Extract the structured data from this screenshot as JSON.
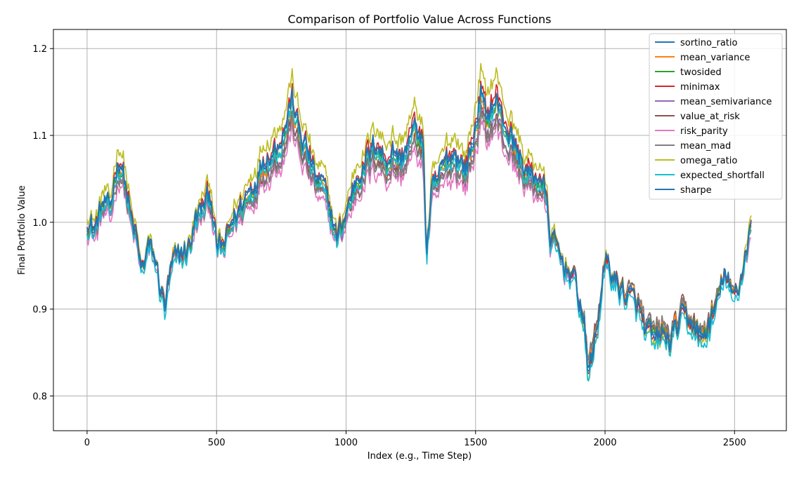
{
  "chart_data": {
    "type": "line",
    "title": "Comparison of Portfolio Value Across Functions",
    "xlabel": "Index (e.g., Time Step)",
    "ylabel": "Final Portfolio Value",
    "xlim": [
      -130,
      2700
    ],
    "ylim": [
      0.76,
      1.222
    ],
    "xticks": [
      0,
      500,
      1000,
      1500,
      2000,
      2500
    ],
    "xtick_labels": [
      "0",
      "500",
      "1000",
      "1500",
      "2000",
      "2500"
    ],
    "yticks": [
      0.8,
      0.9,
      1.0,
      1.1,
      1.2
    ],
    "ytick_labels": [
      "0.8",
      "0.9",
      "1.0",
      "1.1",
      "1.2"
    ],
    "grid": true,
    "legend_position": "top-right",
    "num_points": 2565,
    "base_path": {
      "x": [
        0,
        30,
        60,
        90,
        110,
        130,
        150,
        170,
        190,
        210,
        235,
        260,
        285,
        300,
        330,
        360,
        390,
        420,
        450,
        480,
        500,
        530,
        560,
        600,
        640,
        680,
        720,
        760,
        790,
        820,
        850,
        880,
        910,
        940,
        965,
        990,
        1010,
        1040,
        1080,
        1120,
        1150,
        1180,
        1210,
        1240,
        1270,
        1300,
        1310,
        1330,
        1360,
        1390,
        1420,
        1460,
        1490,
        1520,
        1540,
        1560,
        1580,
        1600,
        1630,
        1660,
        1690,
        1720,
        1750,
        1770,
        1790,
        1810,
        1840,
        1870,
        1900,
        1920,
        1935,
        1950,
        1970,
        1990,
        2010,
        2040,
        2070,
        2100,
        2130,
        2160,
        2190,
        2220,
        2250,
        2280,
        2310,
        2340,
        2370,
        2400,
        2430,
        2460,
        2490,
        2520,
        2540,
        2565
      ],
      "y": [
        1.0,
        0.99,
        1.02,
        1.01,
        1.06,
        1.07,
        1.04,
        1.0,
        0.98,
        0.94,
        0.97,
        0.96,
        0.92,
        0.9,
        0.95,
        0.96,
        0.97,
        1.0,
        1.02,
        1.03,
        0.97,
        0.97,
        1.0,
        1.02,
        1.04,
        1.07,
        1.08,
        1.1,
        1.14,
        1.1,
        1.08,
        1.05,
        1.04,
        1.01,
        0.98,
        1.0,
        1.02,
        1.05,
        1.07,
        1.09,
        1.07,
        1.08,
        1.07,
        1.09,
        1.11,
        1.08,
        0.96,
        1.03,
        1.05,
        1.07,
        1.08,
        1.06,
        1.09,
        1.15,
        1.12,
        1.13,
        1.14,
        1.12,
        1.1,
        1.08,
        1.06,
        1.05,
        1.05,
        1.03,
        0.98,
        0.97,
        0.95,
        0.94,
        0.91,
        0.88,
        0.82,
        0.85,
        0.87,
        0.94,
        0.95,
        0.93,
        0.92,
        0.91,
        0.9,
        0.87,
        0.86,
        0.87,
        0.86,
        0.88,
        0.89,
        0.88,
        0.86,
        0.88,
        0.9,
        0.94,
        0.91,
        0.93,
        0.96,
        1.0
      ]
    },
    "series": [
      {
        "name": "sortino_ratio",
        "color": "#1f77b4",
        "offset": 0.003,
        "scale": 1.0
      },
      {
        "name": "mean_variance",
        "color": "#ff7f0e",
        "offset": 0.0,
        "scale": 0.95
      },
      {
        "name": "twosided",
        "color": "#2ca02c",
        "offset": 0.0,
        "scale": 0.97
      },
      {
        "name": "minimax",
        "color": "#d62728",
        "offset": 0.004,
        "scale": 1.04
      },
      {
        "name": "mean_semivariance",
        "color": "#9467bd",
        "offset": -0.005,
        "scale": 0.9
      },
      {
        "name": "value_at_risk",
        "color": "#8c564b",
        "offset": -0.004,
        "scale": 0.88
      },
      {
        "name": "risk_parity",
        "color": "#e377c2",
        "offset": -0.012,
        "scale": 0.85
      },
      {
        "name": "mean_mad",
        "color": "#7f7f7f",
        "offset": -0.006,
        "scale": 0.87
      },
      {
        "name": "omega_ratio",
        "color": "#bcbd22",
        "offset": 0.012,
        "scale": 1.12
      },
      {
        "name": "expected_shortfall",
        "color": "#17becf",
        "offset": -0.006,
        "scale": 1.02
      },
      {
        "name": "sharpe",
        "color": "#1f77b4",
        "offset": 0.002,
        "scale": 1.0
      }
    ]
  }
}
